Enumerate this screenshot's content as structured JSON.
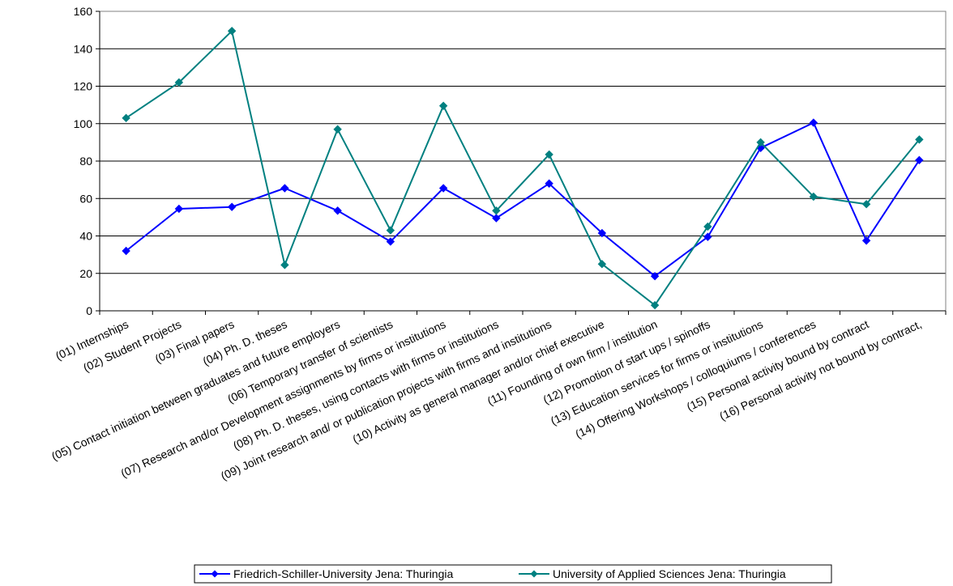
{
  "chart_data": {
    "type": "line",
    "title": "",
    "xlabel": "",
    "ylabel": "",
    "ylim": [
      0,
      160
    ],
    "yticks": [
      0,
      20,
      40,
      60,
      80,
      100,
      120,
      140,
      160
    ],
    "grid": "horizontal",
    "legend_position": "bottom",
    "categories": [
      "(01) Internships",
      "(02) Student Projects",
      "(03) Final papers",
      "(04) Ph. D. theses",
      "(05) Contact initiation between graduates and future employers",
      "(06) Temporary transfer of scientists",
      "(07) Research and/or Development assignments by firms or institutions",
      "(08) Ph. D. theses, using contacts with firms or institutions",
      "(09) Joint research and/ or publication projects with firms and institutions",
      "(10) Activity as general manager and/or chief executive",
      "(11) Founding of  own firm / institution",
      "(12) Promotion of start ups / spinoffs",
      "(13) Education services for firms or institutions",
      "(14) Offering Workshops / colloquiums / conferences",
      "(15) Personal activity bound by contract",
      "(16) Personal activity not bound by contract,"
    ],
    "series": [
      {
        "name": "Friedrich-Schiller-University Jena: Thuringia",
        "color": "#0000ff",
        "marker": "diamond",
        "values": [
          32,
          54.5,
          55.5,
          65.5,
          53.5,
          37,
          65.5,
          49.5,
          68,
          41.5,
          18.5,
          39.5,
          87,
          100.5,
          37.5,
          80.5
        ]
      },
      {
        "name": "University of Applied Sciences Jena: Thuringia",
        "color": "#008080",
        "marker": "diamond",
        "values": [
          103,
          122,
          149.5,
          24.5,
          97,
          43,
          109.5,
          53.5,
          83.5,
          25,
          3,
          45,
          90,
          61,
          57,
          91.5
        ]
      }
    ]
  }
}
